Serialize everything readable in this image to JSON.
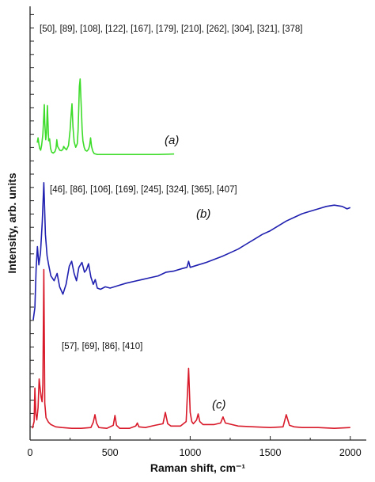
{
  "chart_data": {
    "type": "line",
    "title": "",
    "xlabel": "Raman shift, cm⁻¹",
    "ylabel": "Intensity, arb. units",
    "xlim": [
      0,
      2100
    ],
    "x_ticks": [
      "0",
      "500",
      "1000",
      "1500",
      "2000"
    ],
    "y_ticks_labeled": false,
    "grid": false,
    "legend": "none",
    "series": [
      {
        "name": "(a)",
        "color": "#3ddc2a",
        "peak_annotation": "[50], [89], [108], [122], [167], [179], [210], [262], [304], [321], [378]",
        "x": [
          45,
          50,
          55,
          60,
          66,
          72,
          80,
          86,
          89,
          92,
          98,
          103,
          108,
          112,
          116,
          122,
          128,
          135,
          145,
          155,
          162,
          167,
          172,
          179,
          186,
          195,
          205,
          210,
          218,
          228,
          240,
          250,
          256,
          262,
          268,
          275,
          285,
          295,
          300,
          304,
          308,
          313,
          317,
          321,
          325,
          330,
          338,
          345,
          355,
          365,
          372,
          378,
          384,
          392,
          400,
          420,
          450,
          500,
          600,
          700,
          800,
          900
        ],
        "y": [
          2.8,
          3.8,
          2.6,
          1.6,
          1.2,
          2.2,
          4.6,
          8.6,
          10.8,
          7.0,
          3.4,
          4.8,
          10.6,
          6.8,
          3.2,
          3.6,
          1.6,
          0.8,
          0.6,
          0.9,
          1.6,
          3.4,
          2.0,
          1.6,
          1.2,
          1.1,
          1.4,
          2.0,
          1.6,
          1.3,
          2.2,
          5.4,
          8.4,
          11.0,
          6.2,
          3.0,
          1.8,
          2.6,
          5.4,
          9.8,
          14.6,
          16.2,
          12.4,
          9.2,
          5.6,
          3.2,
          1.8,
          1.2,
          1.0,
          1.4,
          2.2,
          3.8,
          2.0,
          1.0,
          0.5,
          0.3,
          0.3,
          0.3,
          0.3,
          0.3,
          0.3,
          0.4
        ]
      },
      {
        "name": "(b)",
        "color": "#1f1fb0",
        "peak_annotation": "[46], [86], [106], [169], [245], [324], [365], [407]",
        "x": [
          20,
          30,
          38,
          46,
          55,
          65,
          76,
          86,
          96,
          106,
          116,
          130,
          150,
          169,
          185,
          205,
          225,
          245,
          260,
          275,
          290,
          305,
          324,
          340,
          352,
          365,
          380,
          395,
          407,
          420,
          440,
          470,
          500,
          550,
          600,
          650,
          700,
          750,
          800,
          850,
          900,
          950,
          980,
          990,
          1000,
          1050,
          1100,
          1150,
          1200,
          1250,
          1300,
          1350,
          1400,
          1450,
          1500,
          1550,
          1600,
          1650,
          1700,
          1750,
          1800,
          1850,
          1900,
          1950,
          1980,
          2000
        ],
        "y": [
          0.0,
          2.0,
          8.5,
          12.0,
          9.0,
          11.0,
          16.0,
          22.5,
          14.0,
          10.5,
          9.0,
          7.2,
          6.4,
          7.6,
          5.4,
          4.2,
          5.8,
          8.8,
          9.6,
          7.6,
          6.4,
          8.6,
          9.4,
          7.8,
          8.2,
          9.2,
          7.0,
          5.8,
          6.6,
          5.2,
          5.0,
          5.4,
          5.2,
          5.6,
          6.0,
          6.3,
          6.6,
          6.9,
          7.2,
          7.8,
          8.0,
          8.4,
          8.6,
          9.6,
          8.6,
          9.0,
          9.4,
          9.9,
          10.4,
          11.0,
          11.6,
          12.4,
          13.2,
          14.0,
          14.6,
          15.4,
          16.2,
          16.8,
          17.4,
          17.8,
          18.2,
          18.6,
          18.8,
          18.6,
          18.2,
          18.4
        ]
      },
      {
        "name": "(c)",
        "color": "#d81a2a",
        "peak_annotation": "[57], [69], [86], [410]",
        "x": [
          15,
          25,
          30,
          36,
          42,
          50,
          57,
          62,
          69,
          75,
          80,
          86,
          92,
          100,
          115,
          130,
          160,
          200,
          260,
          320,
          380,
          395,
          405,
          415,
          430,
          480,
          520,
          530,
          540,
          560,
          620,
          660,
          670,
          680,
          720,
          780,
          830,
          845,
          860,
          880,
          940,
          975,
          990,
          1000,
          1010,
          1020,
          1040,
          1050,
          1060,
          1080,
          1100,
          1150,
          1190,
          1205,
          1220,
          1260,
          1300,
          1400,
          1500,
          1580,
          1600,
          1620,
          1650,
          1700,
          1800,
          1900,
          2000
        ],
        "y": [
          0.5,
          1.4,
          5.8,
          2.4,
          1.6,
          3.2,
          7.0,
          6.0,
          4.6,
          4.0,
          6.4,
          21.4,
          3.8,
          1.9,
          1.3,
          1.0,
          0.7,
          0.6,
          0.5,
          0.5,
          0.6,
          1.3,
          2.3,
          1.2,
          0.6,
          0.5,
          0.9,
          2.2,
          0.9,
          0.5,
          0.5,
          0.8,
          1.2,
          0.7,
          0.6,
          0.9,
          1.1,
          2.6,
          1.1,
          0.8,
          0.8,
          1.4,
          8.4,
          2.6,
          1.4,
          1.1,
          1.6,
          2.4,
          1.4,
          1.0,
          1.0,
          1.0,
          1.2,
          2.0,
          1.2,
          1.0,
          0.8,
          0.7,
          0.6,
          0.7,
          2.3,
          0.9,
          0.7,
          0.6,
          0.6,
          0.5,
          0.6
        ]
      }
    ]
  }
}
